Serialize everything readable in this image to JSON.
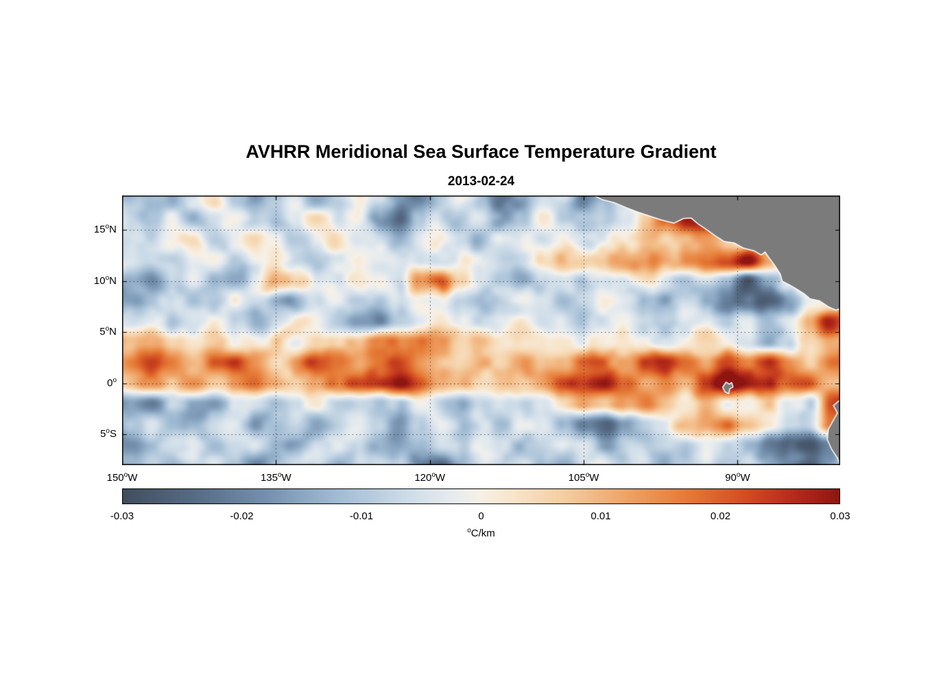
{
  "chart_data": {
    "type": "heatmap",
    "title": "AVHRR Meridional Sea Surface Temperature Gradient",
    "subtitle": "2013-02-24",
    "x_axis": {
      "range": [
        -150,
        -80
      ],
      "ticks": [
        {
          "lon": -150,
          "label": "150^oW"
        },
        {
          "lon": -135,
          "label": "135^oW"
        },
        {
          "lon": -120,
          "label": "120^oW"
        },
        {
          "lon": -105,
          "label": "105^oW"
        },
        {
          "lon": -90,
          "label": "90^oW"
        }
      ]
    },
    "y_axis": {
      "range": [
        -8,
        18.35
      ],
      "ticks": [
        {
          "lat": 15,
          "label": "15^oN"
        },
        {
          "lat": 10,
          "label": "10^oN"
        },
        {
          "lat": 5,
          "label": "5^oN"
        },
        {
          "lat": 0,
          "label": "0^o"
        },
        {
          "lat": -5,
          "label": "5^oS"
        }
      ]
    },
    "colorbar": {
      "min": -0.03,
      "max": 0.03,
      "ticks": [
        -0.03,
        -0.02,
        -0.01,
        0,
        0.01,
        0.02,
        0.03
      ],
      "tick_labels": [
        "-0.03",
        "-0.02",
        "-0.01",
        "0",
        "0.01",
        "0.02",
        "0.03"
      ],
      "unit": "^oC/km"
    },
    "colormap": [
      [
        -0.03,
        "#414d5f"
      ],
      [
        -0.024,
        "#566b84"
      ],
      [
        -0.018,
        "#7490ae"
      ],
      [
        -0.012,
        "#a2bcd4"
      ],
      [
        -0.006,
        "#cfdde9"
      ],
      [
        -0.002,
        "#e9edef"
      ],
      [
        0.0,
        "#f7f0e6"
      ],
      [
        0.003,
        "#f7e3c8"
      ],
      [
        0.007,
        "#f5cda0"
      ],
      [
        0.012,
        "#efa468"
      ],
      [
        0.017,
        "#e67c38"
      ],
      [
        0.022,
        "#d24e22"
      ],
      [
        0.026,
        "#b52c1a"
      ],
      [
        0.03,
        "#8f1511"
      ]
    ],
    "grid": {
      "comment_units": "meridional SST gradient, degC per km, estimated on a 2-degree grid",
      "lon_start": -149,
      "lon_step": 2,
      "lat_start": 18,
      "lat_step": -2,
      "cols": 36,
      "rows": 14,
      "scale": 0.001,
      "values": [
        [
          -8,
          -12,
          -15,
          -6,
          2,
          -10,
          -18,
          -9,
          -2,
          -12,
          -6,
          3,
          -8,
          -15,
          -20,
          -10,
          -3,
          -14,
          -22,
          -16,
          -6,
          -8,
          -22,
          -12,
          0,
          0,
          0,
          0,
          0,
          0,
          0,
          0,
          0,
          0,
          0,
          0
        ],
        [
          -6,
          -10,
          -4,
          -14,
          -8,
          0,
          -12,
          -16,
          -6,
          2,
          -8,
          -3,
          -18,
          -24,
          -12,
          -4,
          -10,
          -6,
          -14,
          -8,
          -2,
          -6,
          -12,
          -8,
          -3,
          6,
          18,
          30,
          25,
          0,
          0,
          0,
          0,
          0,
          0,
          0
        ],
        [
          -4,
          -8,
          -2,
          4,
          -10,
          -6,
          2,
          -3,
          -12,
          -5,
          3,
          -2,
          -8,
          -14,
          -6,
          2,
          -4,
          -10,
          -3,
          2,
          -6,
          -2,
          -8,
          -4,
          2,
          8,
          4,
          10,
          15,
          10,
          0,
          0,
          0,
          0,
          0,
          0
        ],
        [
          -3,
          -6,
          -10,
          -4,
          2,
          -8,
          -3,
          3,
          -6,
          -10,
          -4,
          2,
          -2,
          -6,
          -10,
          -4,
          2,
          -3,
          -8,
          -2,
          4,
          8,
          3,
          6,
          10,
          12,
          10,
          14,
          14,
          20,
          30,
          12,
          0,
          0,
          0,
          0
        ],
        [
          -12,
          -18,
          -8,
          -2,
          -10,
          -15,
          -6,
          12,
          8,
          -4,
          -5,
          3,
          -2,
          -8,
          14,
          20,
          4,
          -6,
          -12,
          -16,
          -8,
          -3,
          -10,
          -6,
          -2,
          4,
          -4,
          -8,
          -4,
          -12,
          -30,
          -15,
          0,
          0,
          0,
          0
        ],
        [
          -15,
          -9,
          -3,
          -12,
          -6,
          2,
          -4,
          -10,
          -16,
          -8,
          -2,
          -6,
          -12,
          -4,
          2,
          -3,
          -9,
          -15,
          -7,
          -2,
          -5,
          -10,
          -4,
          2,
          -3,
          -8,
          -14,
          -6,
          -10,
          -20,
          -24,
          -28,
          -18,
          0,
          0,
          0
        ],
        [
          -6,
          -2,
          -10,
          -4,
          2,
          -6,
          -12,
          -5,
          2,
          -3,
          -8,
          -14,
          -20,
          -8,
          -2,
          3,
          -4,
          -9,
          -3,
          2,
          -6,
          -2,
          -8,
          -3,
          2,
          -5,
          -10,
          -4,
          -2,
          -8,
          -3,
          -12,
          -6,
          10,
          28,
          15
        ],
        [
          8,
          10,
          6,
          3,
          8,
          -3,
          2,
          5,
          -4,
          2,
          7,
          10,
          14,
          18,
          16,
          10,
          4,
          8,
          3,
          -2,
          4,
          2,
          -3,
          3,
          6,
          2,
          -4,
          3,
          5,
          2,
          -6,
          -14,
          -8,
          4,
          12,
          6
        ],
        [
          18,
          22,
          14,
          8,
          16,
          20,
          12,
          6,
          14,
          22,
          18,
          10,
          20,
          24,
          16,
          10,
          6,
          12,
          8,
          14,
          10,
          6,
          16,
          20,
          12,
          22,
          26,
          18,
          12,
          22,
          18,
          24,
          16,
          10,
          18,
          12
        ],
        [
          10,
          14,
          8,
          12,
          6,
          10,
          16,
          10,
          6,
          12,
          20,
          26,
          22,
          28,
          24,
          14,
          8,
          4,
          10,
          6,
          14,
          20,
          28,
          32,
          22,
          12,
          18,
          10,
          24,
          30,
          32,
          26,
          18,
          22,
          14,
          8
        ],
        [
          -14,
          -20,
          -8,
          -12,
          -16,
          -6,
          -2,
          -10,
          -4,
          2,
          -8,
          -3,
          -12,
          -6,
          -2,
          -9,
          -14,
          -6,
          -2,
          -8,
          -3,
          3,
          8,
          4,
          14,
          20,
          8,
          2,
          10,
          4,
          2,
          8,
          -4,
          -10,
          22,
          30
        ],
        [
          -8,
          -4,
          -12,
          -18,
          -10,
          -4,
          -14,
          -8,
          -2,
          -12,
          -6,
          -2,
          -10,
          -16,
          -8,
          -3,
          -10,
          -4,
          -12,
          -6,
          -2,
          -14,
          -22,
          -25,
          -15,
          -6,
          -2,
          6,
          12,
          16,
          8,
          3,
          -6,
          -10,
          15,
          5
        ],
        [
          -16,
          -10,
          -4,
          -8,
          -14,
          -6,
          -2,
          -10,
          -16,
          -8,
          -2,
          -6,
          -12,
          -18,
          -10,
          -4,
          -8,
          -3,
          -6,
          -12,
          -5,
          -2,
          -8,
          -14,
          -6,
          -10,
          -4,
          -8,
          -3,
          -6,
          -12,
          -20,
          -28,
          -30,
          -22,
          -14
        ],
        [
          -10,
          -6,
          -14,
          -8,
          -2,
          -12,
          -18,
          -10,
          -4,
          -8,
          -14,
          -6,
          -2,
          -10,
          -20,
          -24,
          -14,
          -6,
          -10,
          -4,
          -8,
          -14,
          -8,
          -3,
          -10,
          -6,
          -12,
          -8,
          -4,
          -10,
          -6,
          -14,
          -20,
          -26,
          -18,
          -12
        ]
      ]
    },
    "land": {
      "color": "#7b7b7b",
      "outline": "#ffffff",
      "polygons": {
        "central_america": [
          [
            -104.0,
            18.4
          ],
          [
            -103.2,
            18.0
          ],
          [
            -102.0,
            17.7
          ],
          [
            -100.8,
            17.2
          ],
          [
            -99.8,
            16.8
          ],
          [
            -98.6,
            16.4
          ],
          [
            -97.4,
            16.0
          ],
          [
            -96.2,
            15.7
          ],
          [
            -95.3,
            16.15
          ],
          [
            -94.5,
            16.2
          ],
          [
            -93.8,
            15.6
          ],
          [
            -92.9,
            15.0
          ],
          [
            -92.2,
            14.5
          ],
          [
            -91.3,
            13.9
          ],
          [
            -90.3,
            13.75
          ],
          [
            -89.4,
            13.25
          ],
          [
            -88.4,
            13.0
          ],
          [
            -87.7,
            12.6
          ],
          [
            -87.3,
            12.9
          ],
          [
            -86.9,
            12.3
          ],
          [
            -86.3,
            11.5
          ],
          [
            -85.8,
            10.7
          ],
          [
            -85.6,
            10.0
          ],
          [
            -85.0,
            9.7
          ],
          [
            -84.3,
            9.3
          ],
          [
            -83.5,
            8.8
          ],
          [
            -82.9,
            8.3
          ],
          [
            -82.0,
            8.1
          ],
          [
            -81.1,
            7.5
          ],
          [
            -80.4,
            7.2
          ],
          [
            -79.9,
            7.4
          ],
          [
            -79.0,
            7.5
          ],
          [
            -79.0,
            18.4
          ]
        ],
        "south_america": [
          [
            -79.0,
            -1.2
          ],
          [
            -79.9,
            -1.6
          ],
          [
            -80.6,
            -2.2
          ],
          [
            -80.2,
            -2.9
          ],
          [
            -80.6,
            -3.6
          ],
          [
            -81.1,
            -4.5
          ],
          [
            -81.2,
            -5.5
          ],
          [
            -80.8,
            -6.4
          ],
          [
            -80.2,
            -7.3
          ],
          [
            -79.9,
            -8.2
          ],
          [
            -79.0,
            -8.2
          ]
        ],
        "galapagos": [
          [
            -91.4,
            -0.4
          ],
          [
            -91.1,
            0.05
          ],
          [
            -90.8,
            -0.15
          ],
          [
            -90.6,
            0.0
          ],
          [
            -90.5,
            -0.35
          ],
          [
            -90.8,
            -0.5
          ],
          [
            -90.9,
            -0.95
          ],
          [
            -91.2,
            -0.8
          ]
        ]
      }
    },
    "gridlines": {
      "style": "dotted",
      "color": "rgba(45,50,65,0.85)"
    },
    "texture": {
      "noise_amp": 0.006,
      "noise_scale": 34
    }
  }
}
